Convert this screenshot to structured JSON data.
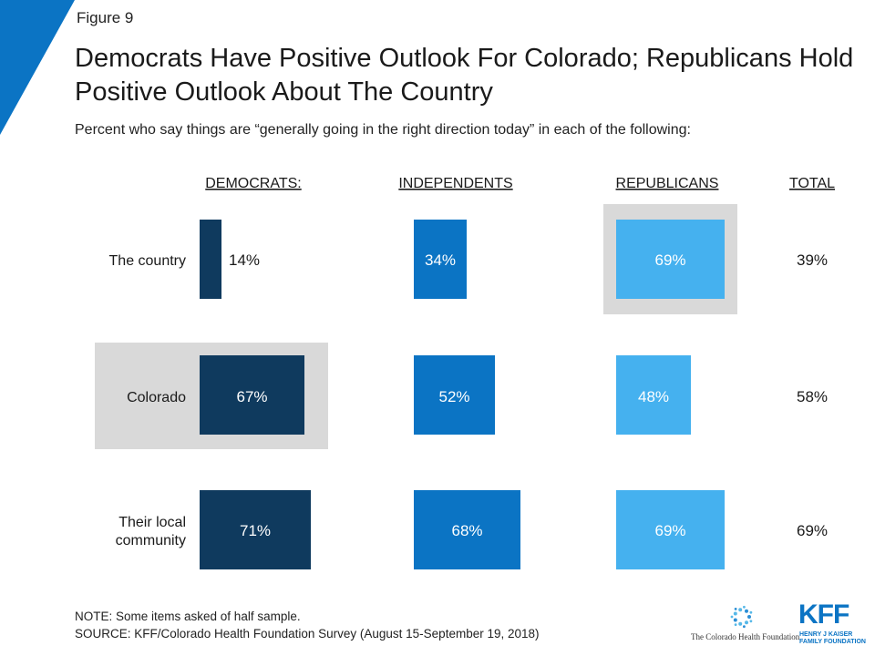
{
  "figure_label": "Figure 9",
  "title": "Democrats Have Positive Outlook For Colorado; Republicans Hold Positive Outlook About The Country",
  "subtitle": "Percent who say things are “generally going in the right direction today” in each of the following:",
  "note": "NOTE: Some items asked of half sample.",
  "source": "SOURCE: KFF/Colorado Health Foundation Survey (August 15-September 19, 2018)",
  "logos": {
    "chf": "The Colorado Health Foundation",
    "kff": "KFF",
    "kff_sub_1": "HENRY J KAISER",
    "kff_sub_2": "FAMILY FOUNDATION"
  },
  "colors": {
    "democrats": "#0f3a5e",
    "independents": "#0b74c4",
    "republicans": "#45b1ef",
    "highlight": "#d9d9d9",
    "accent_corner": "#0b74c4"
  },
  "chart_data": {
    "type": "proportional-square",
    "column_headers": [
      "DEMOCRATS:",
      "INDEPENDENTS",
      "REPUBLICANS",
      "TOTAL"
    ],
    "categories": [
      "The country",
      "Colorado",
      "Their local community"
    ],
    "series": [
      {
        "name": "DEMOCRATS:",
        "values": [
          14,
          67,
          71
        ]
      },
      {
        "name": "INDEPENDENTS",
        "values": [
          34,
          52,
          68
        ]
      },
      {
        "name": "REPUBLICANS",
        "values": [
          69,
          48,
          69
        ]
      }
    ],
    "total": [
      39,
      58,
      69
    ],
    "highlighted": [
      {
        "category": "Colorado",
        "series": "DEMOCRATS:"
      },
      {
        "category": "The country",
        "series": "REPUBLICANS"
      }
    ],
    "unit": "%"
  }
}
